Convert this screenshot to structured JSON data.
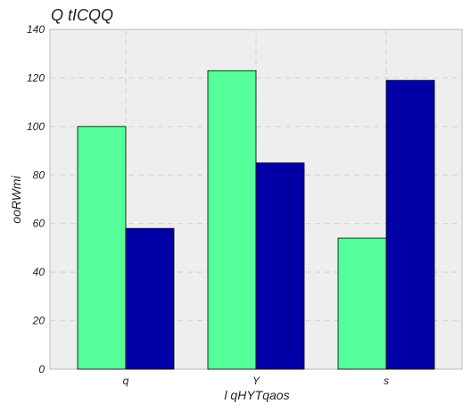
{
  "chart_data": {
    "type": "bar",
    "title": "Q tICQQ",
    "xlabel": "l qHYTqaos",
    "ylabel": "ooRWmi",
    "categories": [
      "q",
      "Y",
      "s"
    ],
    "series": [
      {
        "values": [
          100,
          123,
          54
        ],
        "color": "#55ff99"
      },
      {
        "values": [
          58,
          85,
          119
        ],
        "color": "#0000a6"
      }
    ],
    "ylim": [
      0,
      140
    ],
    "yticks": [
      0,
      20,
      40,
      60,
      80,
      100,
      120,
      140
    ],
    "grid": true,
    "legend": "none"
  }
}
